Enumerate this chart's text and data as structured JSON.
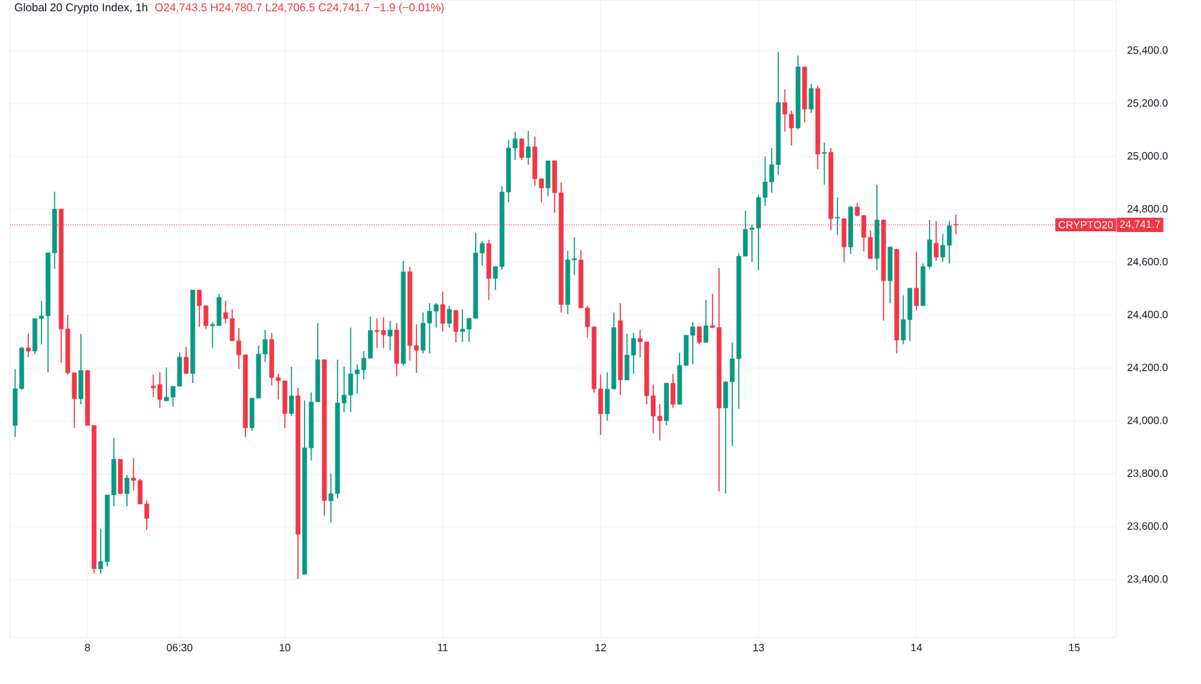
{
  "chart_data": {
    "type": "candlestick",
    "title": "Global 20 Crypto Index, 1h",
    "annotations": [
      "O24,743.5 H24,780.7 L24,706.5 C24,741.7 −1.9 (−0.01%)",
      "24,741.7"
    ],
    "categories": [
      null,
      null,
      null,
      null,
      null,
      null,
      null,
      null,
      null,
      null,
      null,
      "8",
      null,
      null,
      null,
      null,
      null,
      null,
      null,
      null,
      null,
      null,
      null,
      null,
      null,
      "06:30",
      null,
      null,
      null,
      null,
      null,
      null,
      null,
      null,
      null,
      null,
      null,
      null,
      null,
      null,
      null,
      "10",
      null,
      null,
      null,
      null,
      null,
      null,
      null,
      null,
      null,
      null,
      null,
      null,
      null,
      null,
      null,
      null,
      null,
      null,
      null,
      null,
      null,
      null,
      null,
      "11",
      null,
      null,
      null,
      null,
      null,
      null,
      null,
      null,
      null,
      null,
      null,
      null,
      null,
      null,
      null,
      null,
      null,
      null,
      null,
      null,
      null,
      null,
      null,
      "12",
      null,
      null,
      null,
      null,
      null,
      null,
      null,
      null,
      null,
      null,
      null,
      null,
      null,
      null,
      null,
      null,
      null,
      null,
      null,
      null,
      null,
      null,
      null,
      "13",
      null,
      null,
      null,
      null,
      null,
      null,
      null,
      null,
      null,
      null,
      null,
      null,
      null,
      null,
      null,
      null,
      null,
      null,
      null,
      null,
      null,
      null,
      null,
      "14",
      null,
      null,
      null,
      null,
      null,
      null,
      null,
      null,
      null,
      null,
      null,
      null,
      null,
      null,
      null,
      null,
      null,
      null,
      null,
      null,
      null,
      null,
      null,
      "15"
    ],
    "ohlc": [
      [
        23983,
        24196,
        23939,
        24122
      ],
      [
        24122,
        24280,
        24117,
        24276
      ],
      [
        24276,
        24330,
        24241,
        24264
      ],
      [
        24264,
        24387,
        24253,
        24387
      ],
      [
        24387,
        24454,
        24289,
        24397
      ],
      [
        24397,
        24636,
        24184,
        24636
      ],
      [
        24636,
        24867,
        24575,
        24801
      ],
      [
        24801,
        24801,
        24220,
        24348
      ],
      [
        24348,
        24401,
        24175,
        24182
      ],
      [
        24182,
        24182,
        23974,
        24084
      ],
      [
        24084,
        24330,
        24063,
        24191
      ],
      [
        24191,
        24191,
        23983,
        23983
      ],
      [
        23983,
        23983,
        23423,
        23441
      ],
      [
        23441,
        23592,
        23423,
        23468
      ],
      [
        23468,
        23720,
        23450,
        23720
      ],
      [
        23720,
        23935,
        23677,
        23855
      ],
      [
        23855,
        23855,
        23725,
        23725
      ],
      [
        23725,
        23796,
        23677,
        23784
      ],
      [
        23784,
        23859,
        23738,
        23775
      ],
      [
        23775,
        23782,
        23686,
        23686
      ],
      [
        23686,
        23699,
        23587,
        23631
      ],
      [
        24132,
        24175,
        24090,
        24125
      ],
      [
        24138,
        24184,
        24049,
        24081
      ],
      [
        24076,
        24202,
        24076,
        24090
      ],
      [
        24090,
        24131,
        24054,
        24131
      ],
      [
        24131,
        24259,
        24131,
        24241
      ],
      [
        24241,
        24280,
        24179,
        24179
      ],
      [
        24179,
        24495,
        24143,
        24495
      ],
      [
        24495,
        24495,
        24356,
        24436
      ],
      [
        24436,
        24436,
        24348,
        24360
      ],
      [
        24360,
        24374,
        24276,
        24365
      ],
      [
        24360,
        24481,
        24360,
        24467
      ],
      [
        24410,
        24454,
        24369,
        24387
      ],
      [
        24387,
        24422,
        24303,
        24303
      ],
      [
        24303,
        24351,
        24196,
        24250
      ],
      [
        24250,
        24250,
        23939,
        23974
      ],
      [
        23974,
        24086,
        23962,
        24086
      ],
      [
        24086,
        24285,
        24086,
        24253
      ],
      [
        24253,
        24344,
        24223,
        24308
      ],
      [
        24308,
        24333,
        24134,
        24164
      ],
      [
        24164,
        24179,
        24081,
        24152
      ],
      [
        24152,
        24152,
        23974,
        24028
      ],
      [
        24028,
        24205,
        24019,
        24095
      ],
      [
        24095,
        24125,
        23402,
        23571
      ],
      [
        23420,
        24077,
        23420,
        23898
      ],
      [
        23898,
        24108,
        23850,
        24072
      ],
      [
        24072,
        24369,
        24072,
        24232
      ],
      [
        24232,
        24232,
        23642,
        23699
      ],
      [
        23698,
        23801,
        23615,
        23725
      ],
      [
        23725,
        24232,
        23707,
        24068
      ],
      [
        24068,
        24205,
        24033,
        24098
      ],
      [
        24098,
        24353,
        24033,
        24178
      ],
      [
        24178,
        24214,
        24104,
        24193
      ],
      [
        24193,
        24264,
        24157,
        24237
      ],
      [
        24237,
        24395,
        24237,
        24342
      ],
      [
        24342,
        24388,
        24276,
        24338
      ],
      [
        24342,
        24392,
        24276,
        24326
      ],
      [
        24321,
        24379,
        24267,
        24344
      ],
      [
        24344,
        24370,
        24169,
        24217
      ],
      [
        24217,
        24605,
        24210,
        24564
      ],
      [
        24564,
        24582,
        24228,
        24285
      ],
      [
        24285,
        24365,
        24182,
        24267
      ],
      [
        24267,
        24410,
        24255,
        24370
      ],
      [
        24370,
        24445,
        24255,
        24415
      ],
      [
        24415,
        24445,
        24353,
        24440
      ],
      [
        24440,
        24489,
        24338,
        24369
      ],
      [
        24369,
        24436,
        24353,
        24422
      ],
      [
        24418,
        24418,
        24297,
        24338
      ],
      [
        24338,
        24422,
        24299,
        24347
      ],
      [
        24347,
        24388,
        24299,
        24388
      ],
      [
        24388,
        24712,
        24388,
        24635
      ],
      [
        24635,
        24681,
        24587,
        24671
      ],
      [
        24671,
        24685,
        24457,
        24539
      ],
      [
        24539,
        24584,
        24495,
        24584
      ],
      [
        24584,
        24889,
        24573,
        24866
      ],
      [
        24866,
        25062,
        24827,
        25032
      ],
      [
        25032,
        25094,
        24987,
        25067
      ],
      [
        25067,
        25067,
        24987,
        24996
      ],
      [
        24996,
        25097,
        24969,
        25037
      ],
      [
        25037,
        25076,
        24889,
        24916
      ],
      [
        24916,
        24916,
        24827,
        24881
      ],
      [
        24881,
        24984,
        24849,
        24984
      ],
      [
        24984,
        24984,
        24788,
        24863
      ],
      [
        24863,
        24902,
        24410,
        24440
      ],
      [
        24440,
        24644,
        24404,
        24609
      ],
      [
        24609,
        24694,
        24552,
        24614
      ],
      [
        24609,
        24646,
        24427,
        24427
      ],
      [
        24427,
        24436,
        24315,
        24356
      ],
      [
        24356,
        24356,
        24107,
        24121
      ],
      [
        24121,
        24175,
        23947,
        24027
      ],
      [
        24027,
        24184,
        24001,
        24120
      ],
      [
        24121,
        24410,
        24121,
        24353
      ],
      [
        24379,
        24445,
        24098,
        24155
      ],
      [
        24155,
        24330,
        24155,
        24249
      ],
      [
        24249,
        24333,
        24178,
        24312
      ],
      [
        24312,
        24344,
        24241,
        24299
      ],
      [
        24299,
        24299,
        24063,
        24095
      ],
      [
        24095,
        24137,
        23953,
        24018
      ],
      [
        24018,
        24063,
        23926,
        24001
      ],
      [
        24001,
        24143,
        23983,
        24143
      ],
      [
        24143,
        24178,
        24049,
        24063
      ],
      [
        24063,
        24258,
        24063,
        24210
      ],
      [
        24210,
        24324,
        24210,
        24324
      ],
      [
        24324,
        24374,
        24214,
        24356
      ],
      [
        24356,
        24356,
        24290,
        24297
      ],
      [
        24297,
        24457,
        24297,
        24360
      ],
      [
        24360,
        24481,
        24353,
        24353
      ],
      [
        24353,
        24578,
        23734,
        24049
      ],
      [
        24049,
        24148,
        23725,
        24148
      ],
      [
        24148,
        24297,
        23906,
        24235
      ],
      [
        24235,
        24635,
        24045,
        24623
      ],
      [
        24623,
        24795,
        24623,
        24724
      ],
      [
        24724,
        24742,
        24601,
        24730
      ],
      [
        24730,
        24854,
        24570,
        24845
      ],
      [
        24845,
        25000,
        24813,
        24904
      ],
      [
        24904,
        25032,
        24863,
        24969
      ],
      [
        24969,
        25396,
        24930,
        25204
      ],
      [
        25204,
        25254,
        25094,
        25160
      ],
      [
        25160,
        25174,
        25041,
        25108
      ],
      [
        25108,
        25382,
        25103,
        25339
      ],
      [
        25339,
        25339,
        25129,
        25179
      ],
      [
        25179,
        25275,
        25165,
        25257
      ],
      [
        25257,
        25268,
        24952,
        25009
      ],
      [
        25012,
        25053,
        24893,
        25016
      ],
      [
        25016,
        25032,
        24721,
        24765
      ],
      [
        24767,
        24845,
        24703,
        24770
      ],
      [
        24765,
        24765,
        24600,
        24658
      ],
      [
        24658,
        24813,
        24632,
        24809
      ],
      [
        24809,
        24824,
        24774,
        24777
      ],
      [
        24777,
        24777,
        24641,
        24694
      ],
      [
        24694,
        24721,
        24614,
        24614
      ],
      [
        24614,
        24893,
        24570,
        24760
      ],
      [
        24760,
        24760,
        24379,
        24530
      ],
      [
        24530,
        24658,
        24445,
        24658
      ],
      [
        24649,
        24649,
        24255,
        24306
      ],
      [
        24306,
        24475,
        24290,
        24383
      ],
      [
        24383,
        24502,
        24303,
        24502
      ],
      [
        24502,
        24641,
        24418,
        24436
      ],
      [
        24436,
        24596,
        24436,
        24584
      ],
      [
        24584,
        24760,
        24575,
        24685
      ],
      [
        24672,
        24756,
        24605,
        24619
      ],
      [
        24619,
        24708,
        24601,
        24664
      ],
      [
        24664,
        24756,
        24596,
        24738
      ],
      [
        24743.5,
        24780.7,
        24706.5,
        24741.7
      ],
      null,
      null,
      null,
      null,
      null,
      null,
      null,
      null,
      null,
      null,
      null,
      null,
      null,
      null,
      null,
      null,
      null,
      null
    ],
    "colors": [
      "#089981",
      "#089981",
      "#f23645",
      "#089981",
      "#089981",
      "#089981",
      "#089981",
      "#f23645",
      "#f23645",
      "#f23645",
      "#089981",
      "#f23645",
      "#f23645",
      "#089981",
      "#089981",
      "#089981",
      "#f23645",
      "#089981",
      "#f23645",
      "#f23645",
      "#f23645",
      "#f23645",
      "#f23645",
      "#089981",
      "#089981",
      "#089981",
      "#f23645",
      "#089981",
      "#f23645",
      "#f23645",
      "#089981",
      "#089981",
      "#f23645",
      "#f23645",
      "#f23645",
      "#f23645",
      "#089981",
      "#089981",
      "#089981",
      "#f23645",
      "#f23645",
      "#f23645",
      "#089981",
      "#f23645",
      "#089981",
      "#089981",
      "#089981",
      "#f23645",
      "#089981",
      "#089981",
      "#089981",
      "#089981",
      "#089981",
      "#089981",
      "#089981",
      "#f23645",
      "#f23645",
      "#089981",
      "#f23645",
      "#089981",
      "#f23645",
      "#f23645",
      "#089981",
      "#089981",
      "#089981",
      "#f23645",
      "#089981",
      "#f23645",
      "#089981",
      "#089981",
      "#089981",
      "#089981",
      "#f23645",
      "#089981",
      "#089981",
      "#089981",
      "#089981",
      "#f23645",
      "#089981",
      "#f23645",
      "#f23645",
      "#089981",
      "#f23645",
      "#f23645",
      "#089981",
      "#089981",
      "#f23645",
      "#f23645",
      "#f23645",
      "#f23645",
      "#089981",
      "#089981",
      "#f23645",
      "#089981",
      "#089981",
      "#f23645",
      "#f23645",
      "#f23645",
      "#f23645",
      "#089981",
      "#f23645",
      "#089981",
      "#089981",
      "#089981",
      "#f23645",
      "#089981",
      "#f23645",
      "#f23645",
      "#089981",
      "#089981",
      "#089981",
      "#089981",
      "#089981",
      "#089981",
      "#089981",
      "#089981",
      "#089981",
      "#f23645",
      "#f23645",
      "#089981",
      "#f23645",
      "#089981",
      "#f23645",
      "#089981",
      "#f23645",
      "#089981",
      "#f23645",
      "#089981",
      "#f23645",
      "#f23645",
      "#f23645",
      "#089981",
      "#f23645",
      "#089981",
      "#f23645",
      "#089981",
      "#089981",
      "#f23645",
      "#089981",
      "#089981",
      "#f23645",
      "#089981",
      "#089981",
      "#f23645",
      null,
      null,
      null,
      null,
      null,
      null,
      null,
      null,
      null,
      null,
      null,
      null,
      null,
      null,
      null,
      null,
      null,
      null
    ],
    "ylim": [
      23181,
      25592
    ],
    "yticks": [
      {
        "value": 23400,
        "label": "23,400.0"
      },
      {
        "value": 23600,
        "label": "23,600.0"
      },
      {
        "value": 23800,
        "label": "23,800.0"
      },
      {
        "value": 24000,
        "label": "24,000.0"
      },
      {
        "value": 24200,
        "label": "24,200.0"
      },
      {
        "value": 24400,
        "label": "24,400.0"
      },
      {
        "value": 24600,
        "label": "24,600.0"
      },
      {
        "value": 24800,
        "label": "24,800.0"
      },
      {
        "value": 25000,
        "label": "25,000.0"
      },
      {
        "value": 25200,
        "label": "25,200.0"
      },
      {
        "value": 25400,
        "label": "25,400.0"
      }
    ],
    "grid": true,
    "ref_lines": [
      {
        "axis": "y",
        "value": 24741.7,
        "label": "CRYPTO20",
        "color": "#f23645",
        "line_style": "dotted"
      }
    ]
  }
}
